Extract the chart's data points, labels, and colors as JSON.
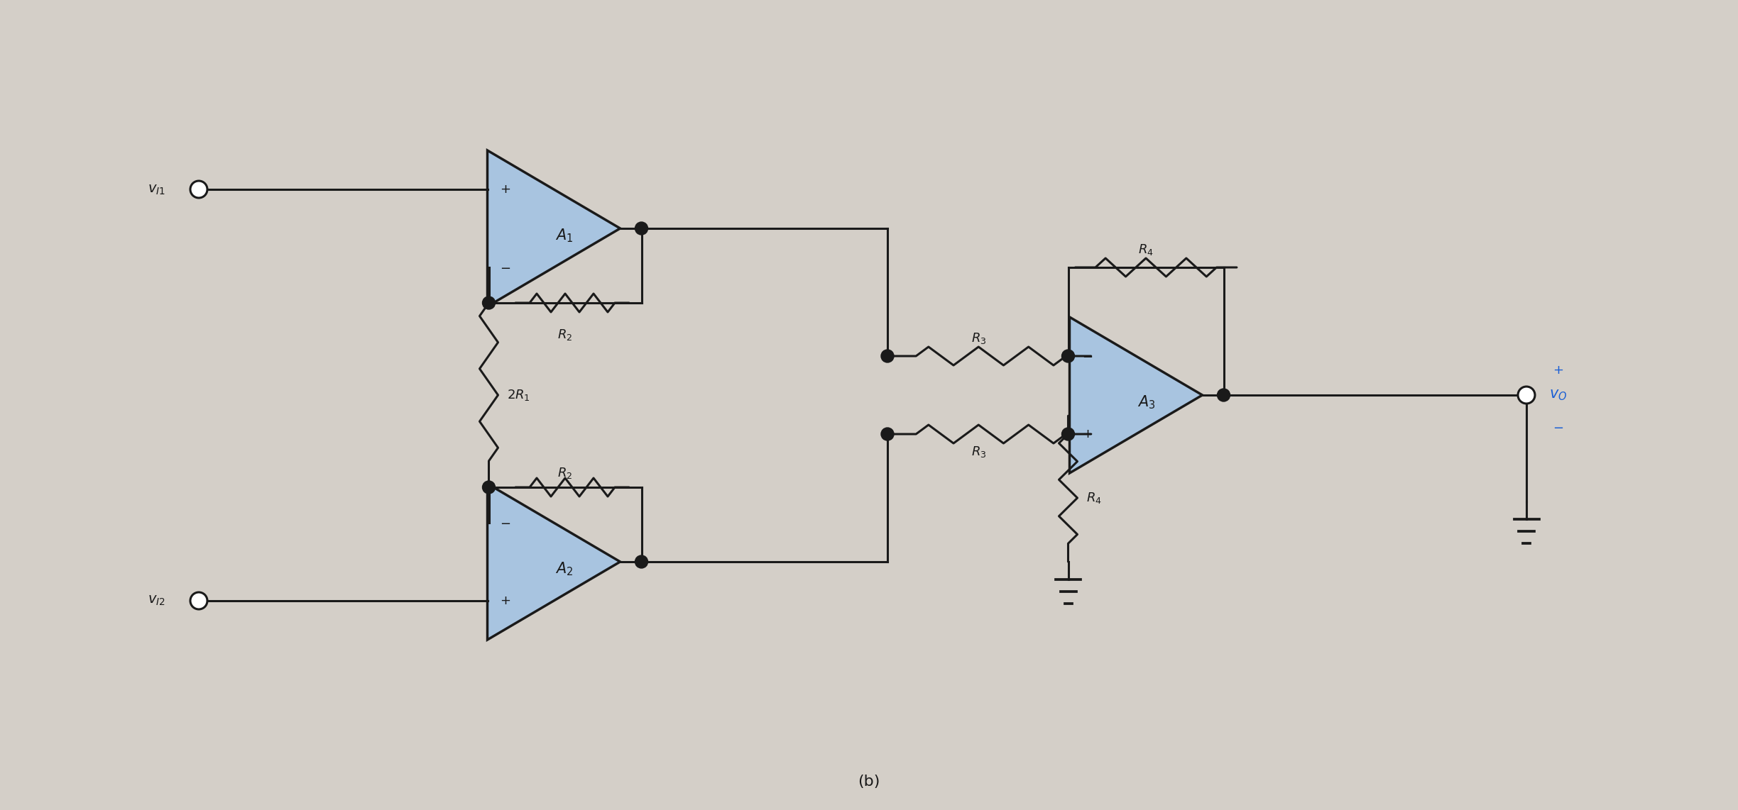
{
  "bg_color": "#d4cfc8",
  "line_color": "#1a1a1a",
  "fill_color": "#a8c4e0",
  "label_color": "#1a1a1a",
  "blue_color": "#1a5fd4",
  "figsize": [
    24.48,
    11.42
  ],
  "dpi": 100,
  "caption": "(b)"
}
